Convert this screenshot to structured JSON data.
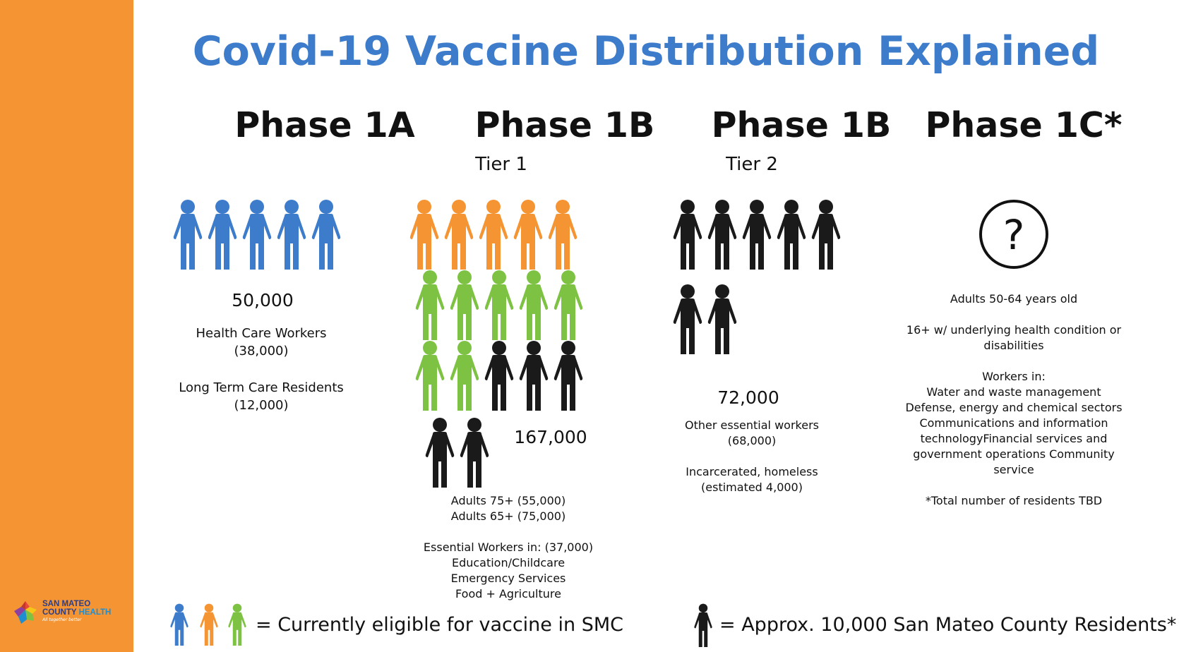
{
  "title": "Covid-19 Vaccine Distribution Explained",
  "colors": {
    "sidebar": "#f59432",
    "title": "#3d7bcb",
    "blue_figure": "#3d7bcb",
    "orange_figure": "#f59432",
    "green_figure": "#7dc242",
    "black_figure": "#1a1a1a"
  },
  "phases": [
    {
      "name": "Phase 1A",
      "tier": "",
      "total": "50,000",
      "lines": [
        "Health Care Workers",
        "(38,000)",
        "Long Term Care Residents",
        "(12,000)"
      ]
    },
    {
      "name": "Phase 1B",
      "tier": "Tier 1",
      "total": "167,000",
      "lines": [
        "Adults 75+ (55,000)",
        "Adults 65+ (75,000)",
        "Essential Workers in: (37,000)",
        "Education/Childcare",
        "Emergency Services",
        "Food + Agriculture"
      ]
    },
    {
      "name": "Phase 1B",
      "tier": "Tier 2",
      "total": "72,000",
      "lines": [
        "Other essential workers",
        "(68,000)",
        "Incarcerated, homeless",
        "(estimated 4,000)"
      ]
    },
    {
      "name": "Phase 1C*",
      "tier": "",
      "total": "",
      "icon": "question-mark-circle-icon",
      "lines": [
        "Adults 50-64 years old",
        "16+ w/ underlying health condition or",
        "disabilities",
        "Workers in:",
        "Water and waste management",
        "Defense, energy and chemical sectors",
        "Communications and information",
        "technologyFinancial services and",
        "government operations Community",
        "service",
        "*Total number of residents TBD"
      ]
    }
  ],
  "figure_counts": {
    "phase_1a": {
      "blue": 5
    },
    "phase_1b_tier1": {
      "orange": 5,
      "green": 7,
      "black": 5
    },
    "phase_1b_tier2": {
      "black": 7
    }
  },
  "legend": {
    "eligible_text": "= Currently eligible for vaccine in SMC",
    "eligible_icons": [
      "blue-person-icon",
      "orange-person-icon",
      "green-person-icon"
    ],
    "unit_text": "= Approx. 10,000 San Mateo County Residents*",
    "unit_icon": "black-person-icon"
  },
  "logo": {
    "line1": "SAN MATEO",
    "line2a": "COUNTY",
    "line2b": "HEALTH",
    "tagline": "All together better"
  }
}
